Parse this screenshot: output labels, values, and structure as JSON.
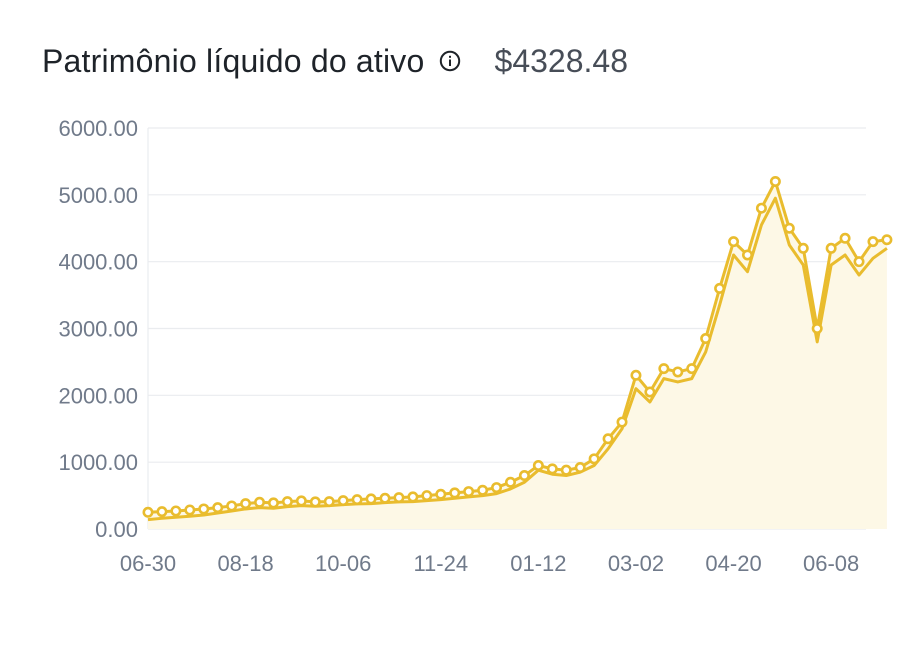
{
  "header": {
    "title": "Patrimônio líquido do ativo",
    "info_icon": "info-circle-icon",
    "value": "$4328.48"
  },
  "colors": {
    "line": "#e9bc2e",
    "area": "#fdf8e6",
    "grid": "#eaecef",
    "tick": "#707a8a"
  },
  "chart_data": {
    "type": "line",
    "title": "",
    "xlabel": "",
    "ylabel": "",
    "ylim": [
      0,
      6000
    ],
    "yticks": [
      "0.00",
      "1000.00",
      "2000.00",
      "3000.00",
      "4000.00",
      "5000.00",
      "6000.00"
    ],
    "xticks": [
      {
        "label": "06-30",
        "i": 0
      },
      {
        "label": "08-18",
        "i": 7
      },
      {
        "label": "10-06",
        "i": 14
      },
      {
        "label": "11-24",
        "i": 21
      },
      {
        "label": "01-12",
        "i": 28
      },
      {
        "label": "03-02",
        "i": 35
      },
      {
        "label": "04-20",
        "i": 42
      },
      {
        "label": "06-08",
        "i": 49
      }
    ],
    "xrange": [
      0,
      51.5
    ],
    "grid": true,
    "series": [
      {
        "values": [
          250,
          260,
          270,
          285,
          300,
          320,
          345,
          380,
          400,
          390,
          410,
          420,
          405,
          410,
          425,
          440,
          450,
          460,
          470,
          480,
          500,
          520,
          540,
          560,
          580,
          620,
          700,
          800,
          950,
          900,
          880,
          920,
          1050,
          1350,
          1600,
          2300,
          2050,
          2400,
          2350,
          2400,
          2850,
          3600,
          4300,
          4100,
          4800,
          5200,
          4500,
          4200,
          3000,
          4200,
          4350,
          4000,
          4300,
          4328.48
        ]
      },
      {
        "values": [
          140,
          160,
          175,
          190,
          210,
          240,
          270,
          300,
          320,
          310,
          335,
          350,
          340,
          350,
          365,
          375,
          380,
          395,
          405,
          410,
          425,
          440,
          460,
          480,
          500,
          530,
          600,
          700,
          880,
          820,
          800,
          850,
          950,
          1200,
          1500,
          2100,
          1900,
          2250,
          2200,
          2250,
          2650,
          3350,
          4100,
          3850,
          4550,
          4950,
          4250,
          3950,
          2800,
          3950,
          4100,
          3800,
          4050,
          4200
        ]
      }
    ]
  }
}
